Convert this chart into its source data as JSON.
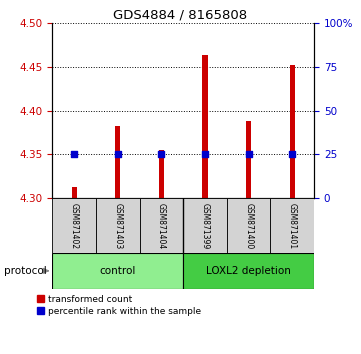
{
  "title": "GDS4884 / 8165808",
  "samples": [
    "GSM871402",
    "GSM871403",
    "GSM871404",
    "GSM871399",
    "GSM871400",
    "GSM871401"
  ],
  "red_values": [
    4.313,
    4.383,
    4.355,
    4.463,
    4.388,
    4.452
  ],
  "blue_percentile": [
    25,
    25,
    25,
    25,
    25,
    25
  ],
  "ylim_left": [
    4.3,
    4.5
  ],
  "ylim_right": [
    0,
    100
  ],
  "yticks_left": [
    4.3,
    4.35,
    4.4,
    4.45,
    4.5
  ],
  "yticks_right": [
    0,
    25,
    50,
    75,
    100
  ],
  "ytick_labels_right": [
    "0",
    "25",
    "50",
    "75",
    "100%"
  ],
  "bar_bottom": 4.3,
  "bar_color": "#CC0000",
  "dot_color": "#0000CC",
  "left_axis_color": "#CC0000",
  "right_axis_color": "#0000CC",
  "sample_bg_color": "#D3D3D3",
  "control_color": "#90EE90",
  "loxl2_color": "#44CC44",
  "protocol_label": "protocol",
  "control_label": "control",
  "loxl2_label": "LOXL2 depletion",
  "legend_red": "transformed count",
  "legend_blue": "percentile rank within the sample"
}
